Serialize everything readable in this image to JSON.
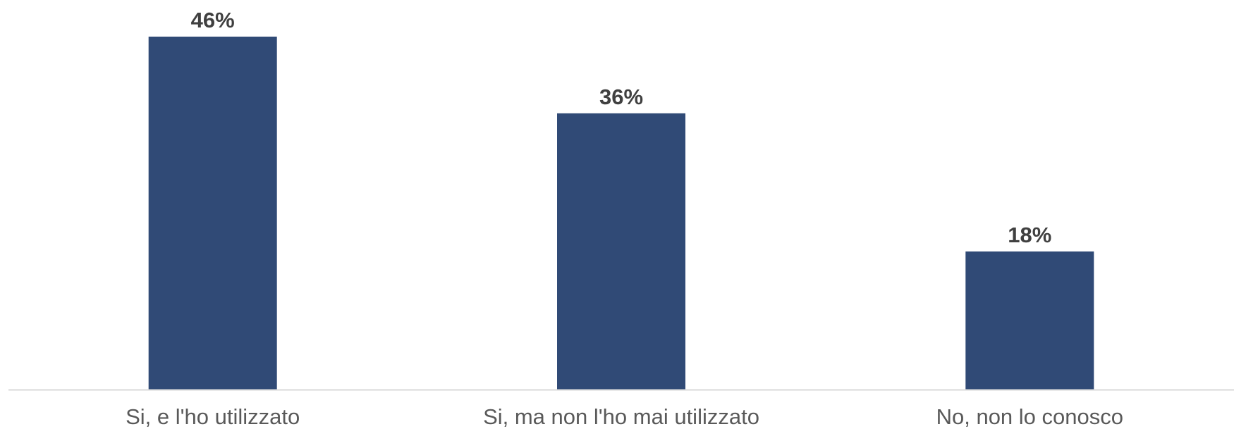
{
  "chart_data": {
    "type": "bar",
    "categories": [
      "Si, e l'ho utilizzato",
      "Si, ma non l'ho mai utilizzato",
      "No, non lo conosco"
    ],
    "values": [
      46,
      36,
      18
    ],
    "data_labels": [
      "46%",
      "36%",
      "18%"
    ],
    "unit": "%",
    "ylim": [
      0,
      50
    ],
    "grid": false,
    "legend": "none",
    "bar_color": "#304A76",
    "axis_color": "#D9D9D9"
  }
}
